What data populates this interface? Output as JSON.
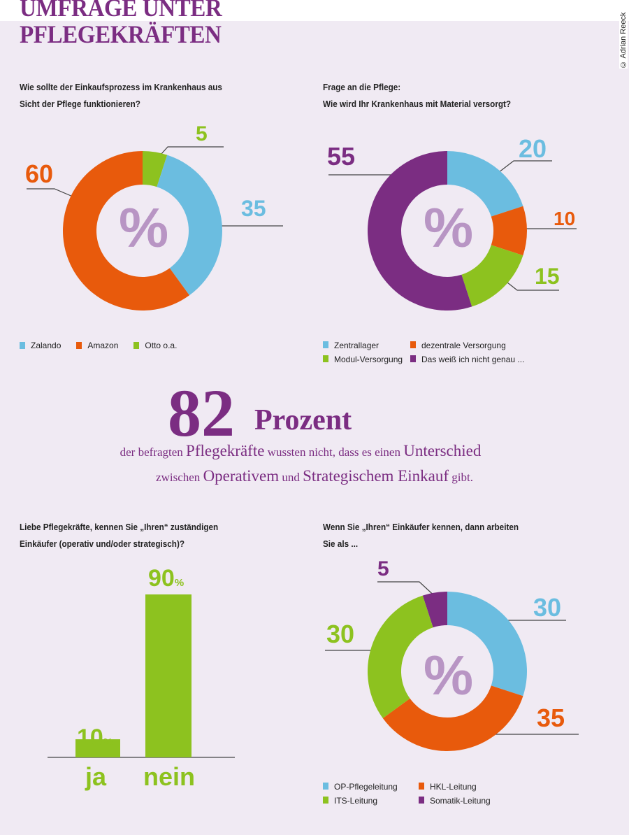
{
  "title": [
    "UMFRAGE UNTER",
    "PFLEGEKRÄFTEN"
  ],
  "credit": "© Adrian Reeck",
  "percent_symbol": "%",
  "colors": {
    "blue": "#6bbde0",
    "orange": "#e85a0c",
    "green": "#8dc21f",
    "purple": "#7b2d82"
  },
  "highlight": {
    "number": "82",
    "unit": "Prozent",
    "line1": [
      "der befragten ",
      "Pflegekräfte",
      " wussten nicht, dass es einen ",
      "Unterschied"
    ],
    "line2": [
      "zwischen ",
      "Operativem",
      " und ",
      "Strategischem Einkauf",
      " gibt."
    ]
  },
  "chart_data": [
    {
      "type": "pie",
      "donut": true,
      "question": [
        "Wie sollte der Einkaufsprozess im Krankenhaus aus",
        "Sicht der Pflege funktionieren?"
      ],
      "unit": "%",
      "slices": [
        {
          "name": "Otto o.a.",
          "value": 5,
          "color": "#8dc21f"
        },
        {
          "name": "Zalando",
          "value": 35,
          "color": "#6bbde0"
        },
        {
          "name": "Amazon",
          "value": 60,
          "color": "#e85a0c"
        }
      ],
      "legend": [
        "Zalando",
        "Amazon",
        "Otto o.a."
      ],
      "legend_position": "bottom"
    },
    {
      "type": "pie",
      "donut": true,
      "question": [
        "Frage an die Pflege:",
        "Wie wird Ihr Krankenhaus mit Material versorgt?"
      ],
      "unit": "%",
      "slices": [
        {
          "name": "Zentrallager",
          "value": 20,
          "color": "#6bbde0"
        },
        {
          "name": "dezentrale Versorgung",
          "value": 10,
          "color": "#e85a0c"
        },
        {
          "name": "Modul-Versorgung",
          "value": 15,
          "color": "#8dc21f"
        },
        {
          "name": "Das weiß ich nicht genau ...",
          "value": 55,
          "color": "#7b2d82"
        }
      ],
      "legend": [
        "Zentrallager",
        "dezentrale Versorgung",
        "Modul-Versorgung",
        "Das weiß ich nicht genau ..."
      ],
      "legend_position": "bottom"
    },
    {
      "type": "bar",
      "question": [
        "Liebe Pflegekräfte, kennen Sie „Ihren“ zuständigen",
        "Einkäufer (operativ und/oder strategisch)?"
      ],
      "categories": [
        "ja",
        "nein"
      ],
      "values": [
        10,
        90
      ],
      "unit": "%",
      "color": "#8dc21f"
    },
    {
      "type": "pie",
      "donut": true,
      "question": [
        "Wenn Sie „Ihren“ Einkäufer kennen, dann arbeiten",
        "Sie als ..."
      ],
      "unit": "%",
      "slices": [
        {
          "name": "Somatik-Leitung",
          "value": 5,
          "color": "#7b2d82"
        },
        {
          "name": "OP-Pflegeleitung",
          "value": 30,
          "color": "#6bbde0"
        },
        {
          "name": "HKL-Leitung",
          "value": 35,
          "color": "#e85a0c"
        },
        {
          "name": "ITS-Leitung",
          "value": 30,
          "color": "#8dc21f"
        }
      ],
      "start_offset": -5,
      "legend": [
        "OP-Pflegeleitung",
        "HKL-Leitung",
        "ITS-Leitung",
        "Somatik-Leitung"
      ],
      "legend_position": "bottom"
    }
  ]
}
